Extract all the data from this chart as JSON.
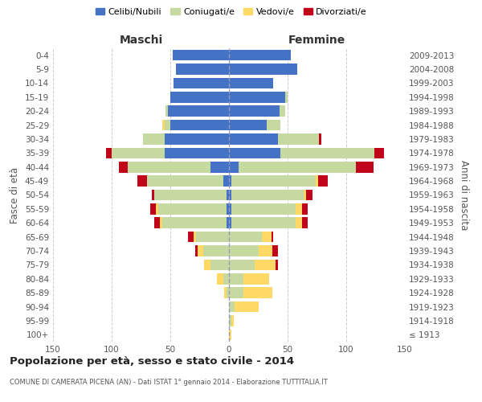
{
  "age_groups": [
    "100+",
    "95-99",
    "90-94",
    "85-89",
    "80-84",
    "75-79",
    "70-74",
    "65-69",
    "60-64",
    "55-59",
    "50-54",
    "45-49",
    "40-44",
    "35-39",
    "30-34",
    "25-29",
    "20-24",
    "15-19",
    "10-14",
    "5-9",
    "0-4"
  ],
  "birth_years": [
    "≤ 1913",
    "1914-1918",
    "1919-1923",
    "1924-1928",
    "1929-1933",
    "1934-1938",
    "1939-1943",
    "1944-1948",
    "1949-1953",
    "1954-1958",
    "1959-1963",
    "1964-1968",
    "1969-1973",
    "1974-1978",
    "1979-1983",
    "1984-1988",
    "1989-1993",
    "1994-1998",
    "1999-2003",
    "2004-2008",
    "2009-2013"
  ],
  "maschi_celibi": [
    0,
    0,
    0,
    0,
    0,
    0,
    0,
    0,
    2,
    2,
    2,
    5,
    16,
    55,
    55,
    50,
    52,
    50,
    47,
    45,
    48
  ],
  "maschi_coniugati": [
    0,
    0,
    0,
    2,
    5,
    16,
    22,
    28,
    55,
    58,
    62,
    65,
    70,
    45,
    18,
    5,
    2,
    0,
    0,
    0,
    0
  ],
  "maschi_vedovi": [
    0,
    0,
    0,
    2,
    5,
    5,
    5,
    2,
    2,
    2,
    0,
    0,
    0,
    0,
    0,
    2,
    0,
    0,
    0,
    0,
    0
  ],
  "maschi_divorziati": [
    0,
    0,
    0,
    0,
    0,
    0,
    2,
    5,
    5,
    5,
    2,
    8,
    8,
    5,
    0,
    0,
    0,
    0,
    0,
    0,
    0
  ],
  "femmine_nubili": [
    0,
    0,
    0,
    0,
    0,
    0,
    0,
    0,
    2,
    2,
    2,
    2,
    8,
    44,
    42,
    32,
    43,
    48,
    38,
    58,
    53
  ],
  "femmine_coniugate": [
    0,
    2,
    5,
    12,
    12,
    22,
    25,
    28,
    55,
    55,
    62,
    72,
    100,
    80,
    35,
    12,
    5,
    2,
    0,
    0,
    0
  ],
  "femmine_vedove": [
    2,
    2,
    20,
    25,
    22,
    18,
    12,
    8,
    5,
    5,
    2,
    2,
    0,
    0,
    0,
    0,
    0,
    0,
    0,
    0,
    0
  ],
  "femmine_divorziate": [
    0,
    0,
    0,
    0,
    0,
    2,
    5,
    2,
    5,
    5,
    5,
    8,
    15,
    8,
    2,
    0,
    0,
    0,
    0,
    0,
    0
  ],
  "color_celibi": "#4472C4",
  "color_coniugati": "#C5D9A0",
  "color_vedovi": "#FFD966",
  "color_divorziati": "#C0051A",
  "title": "Popolazione per età, sesso e stato civile - 2014",
  "subtitle": "COMUNE DI CAMERATA PICENA (AN) - Dati ISTAT 1° gennaio 2014 - Elaborazione TUTTITALIA.IT",
  "ylabel_left": "Fasce di età",
  "ylabel_right": "Anni di nascita",
  "label_maschi": "Maschi",
  "label_femmine": "Femmine",
  "legend_labels": [
    "Celibi/Nubili",
    "Coniugati/e",
    "Vedovi/e",
    "Divorziati/e"
  ],
  "xlim": 150,
  "bg_color": "#ffffff",
  "grid_color": "#cccccc"
}
